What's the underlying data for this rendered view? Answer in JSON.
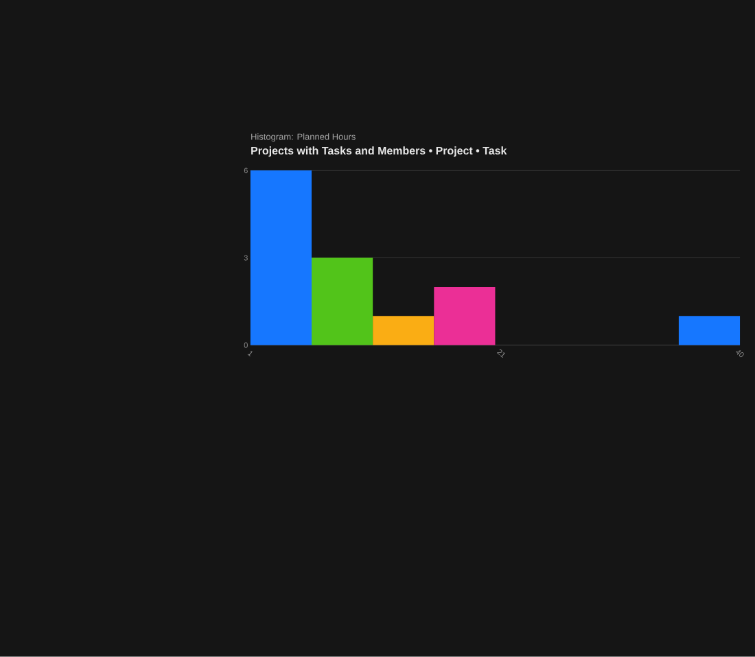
{
  "chart_data": {
    "type": "histogram",
    "title": "Projects with Tasks and Members • Project • Task",
    "subtitle": "Histogram: Planned Hours",
    "bins": [
      1,
      5.875,
      10.75,
      15.625,
      20.5,
      25.375,
      30.25,
      35.125,
      40
    ],
    "values": [
      6,
      3,
      1,
      2,
      0,
      0,
      0,
      1
    ],
    "colors": [
      "#1677ff",
      "#52c41a",
      "#faad14",
      "#eb2f96",
      "#722ed1",
      "#13c2c2",
      "#fa541c",
      "#1677ff"
    ],
    "xlim": [
      1,
      40
    ],
    "xticks": [
      1,
      21,
      40
    ],
    "ylim": [
      0,
      6
    ],
    "yticks": [
      0,
      3,
      6
    ],
    "grid": "y"
  }
}
